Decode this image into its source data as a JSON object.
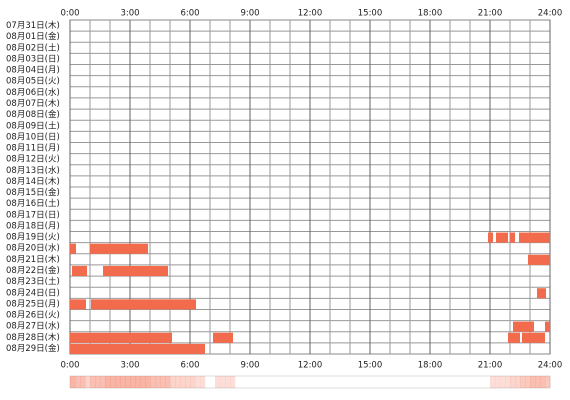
{
  "chart_data": {
    "type": "timeline",
    "categories": [
      "07月31日(木)",
      "08月01日(金)",
      "08月02日(土)",
      "08月03日(日)",
      "08月04日(月)",
      "08月05日(火)",
      "08月06日(水)",
      "08月07日(木)",
      "08月08日(金)",
      "08月09日(土)",
      "08月10日(日)",
      "08月11日(月)",
      "08月12日(火)",
      "08月13日(水)",
      "08月14日(木)",
      "08月15日(金)",
      "08月16日(土)",
      "08月17日(日)",
      "08月18日(月)",
      "08月19日(火)",
      "08月20日(水)",
      "08月21日(木)",
      "08月22日(金)",
      "08月23日(土)",
      "08月24日(日)",
      "08月25日(月)",
      "08月26日(火)",
      "08月27日(水)",
      "08月28日(木)",
      "08月29日(金)"
    ],
    "segments": [
      [],
      [],
      [],
      [],
      [],
      [],
      [],
      [],
      [],
      [],
      [],
      [],
      [],
      [],
      [],
      [],
      [],
      [],
      [],
      [
        [
          20.9,
          21.15
        ],
        [
          21.3,
          21.9
        ],
        [
          22.0,
          22.25
        ],
        [
          22.45,
          24
        ]
      ],
      [
        [
          0,
          0.3
        ],
        [
          1.0,
          3.9
        ]
      ],
      [
        [
          22.9,
          24
        ]
      ],
      [
        [
          0.1,
          0.85
        ],
        [
          1.65,
          4.9
        ]
      ],
      [],
      [
        [
          23.35,
          23.8
        ]
      ],
      [
        [
          0,
          0.8
        ],
        [
          1.05,
          6.3
        ]
      ],
      [],
      [
        [
          22.15,
          23.2
        ],
        [
          23.75,
          24
        ]
      ],
      [
        [
          0,
          5.1
        ],
        [
          7.15,
          8.15
        ],
        [
          21.9,
          22.5
        ],
        [
          22.6,
          23.75
        ]
      ],
      [
        [
          0,
          6.75
        ]
      ]
    ],
    "color": "#f26b4c",
    "xlim": [
      0,
      24
    ],
    "xticks": [
      {
        "value": 0,
        "label": "0:00"
      },
      {
        "value": 3,
        "label": "3:00"
      },
      {
        "value": 6,
        "label": "6:00"
      },
      {
        "value": 9,
        "label": "9:00"
      },
      {
        "value": 12,
        "label": "12:00"
      },
      {
        "value": 15,
        "label": "15:00"
      },
      {
        "value": 18,
        "label": "18:00"
      },
      {
        "value": 21,
        "label": "21:00"
      },
      {
        "value": 24,
        "label": "24:00"
      }
    ],
    "grid": true
  }
}
